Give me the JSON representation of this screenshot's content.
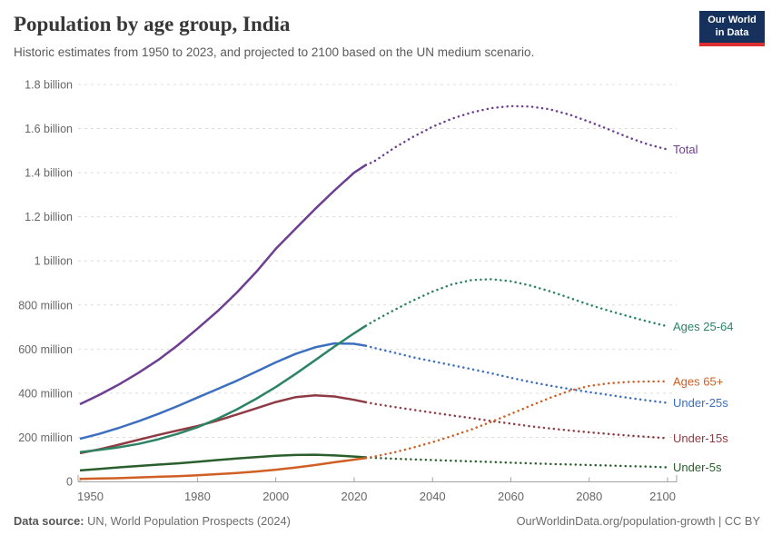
{
  "header": {
    "logo": {
      "line1": "Our World",
      "line2": "in Data",
      "bg": "#16325c",
      "accent": "#dc2f2f"
    }
  },
  "footer": {
    "source_label": "Data source:",
    "source_text": " UN, World Population Prospects (2024)",
    "link_text": "OurWorldinData.org/population-growth | CC BY"
  },
  "chart_data": {
    "type": "line",
    "title": "Population by age group, India",
    "subtitle": "Historic estimates from 1950 to 2023, and projected to 2100 based on the UN medium scenario.",
    "xlabel": "",
    "ylabel": "",
    "units": "millions of people",
    "x_range": [
      1950,
      2100
    ],
    "y_range": [
      0,
      1800
    ],
    "grid": true,
    "legend_position": "right-of-line-ends",
    "projection_start": 2023,
    "x_ticks": [
      {
        "v": 1950,
        "label": "1950"
      },
      {
        "v": 1980,
        "label": "1980"
      },
      {
        "v": 2000,
        "label": "2000"
      },
      {
        "v": 2020,
        "label": "2020"
      },
      {
        "v": 2040,
        "label": "2040"
      },
      {
        "v": 2060,
        "label": "2060"
      },
      {
        "v": 2080,
        "label": "2080"
      },
      {
        "v": 2100,
        "label": "2100"
      }
    ],
    "y_ticks": [
      {
        "v": 0,
        "label": "0"
      },
      {
        "v": 200,
        "label": "200 million"
      },
      {
        "v": 400,
        "label": "400 million"
      },
      {
        "v": 600,
        "label": "600 million"
      },
      {
        "v": 800,
        "label": "800 million"
      },
      {
        "v": 1000,
        "label": "1 billion"
      },
      {
        "v": 1200,
        "label": "1.2 billion"
      },
      {
        "v": 1400,
        "label": "1.4 billion"
      },
      {
        "v": 1600,
        "label": "1.6 billion"
      },
      {
        "v": 1800,
        "label": "1.8 billion"
      }
    ],
    "series": [
      {
        "name": "Under-25s",
        "color": "#3d6fbf",
        "points": [
          [
            1950,
            193
          ],
          [
            1955,
            216
          ],
          [
            1960,
            243
          ],
          [
            1965,
            273
          ],
          [
            1970,
            306
          ],
          [
            1975,
            342
          ],
          [
            1980,
            380
          ],
          [
            1985,
            418
          ],
          [
            1990,
            456
          ],
          [
            1995,
            498
          ],
          [
            2000,
            540
          ],
          [
            2005,
            578
          ],
          [
            2010,
            608
          ],
          [
            2015,
            626
          ],
          [
            2020,
            624
          ],
          [
            2023,
            615
          ],
          [
            2025,
            606
          ],
          [
            2030,
            585
          ],
          [
            2035,
            563
          ],
          [
            2040,
            545
          ],
          [
            2045,
            527
          ],
          [
            2050,
            509
          ],
          [
            2055,
            490
          ],
          [
            2060,
            470
          ],
          [
            2065,
            451
          ],
          [
            2070,
            434
          ],
          [
            2075,
            419
          ],
          [
            2080,
            405
          ],
          [
            2085,
            392
          ],
          [
            2090,
            379
          ],
          [
            2095,
            367
          ],
          [
            2100,
            356
          ]
        ]
      },
      {
        "name": "Under-15s",
        "color": "#8f3b43",
        "points": [
          [
            1950,
            128
          ],
          [
            1955,
            146
          ],
          [
            1960,
            167
          ],
          [
            1965,
            189
          ],
          [
            1970,
            211
          ],
          [
            1975,
            231
          ],
          [
            1980,
            251
          ],
          [
            1985,
            275
          ],
          [
            1990,
            303
          ],
          [
            1995,
            331
          ],
          [
            2000,
            360
          ],
          [
            2005,
            382
          ],
          [
            2010,
            390
          ],
          [
            2015,
            385
          ],
          [
            2020,
            370
          ],
          [
            2023,
            359
          ],
          [
            2025,
            352
          ],
          [
            2030,
            338
          ],
          [
            2035,
            325
          ],
          [
            2040,
            312
          ],
          [
            2045,
            299
          ],
          [
            2050,
            287
          ],
          [
            2055,
            274
          ],
          [
            2060,
            262
          ],
          [
            2065,
            250
          ],
          [
            2070,
            240
          ],
          [
            2075,
            231
          ],
          [
            2080,
            223
          ],
          [
            2085,
            215
          ],
          [
            2090,
            208
          ],
          [
            2095,
            202
          ],
          [
            2100,
            196
          ]
        ]
      },
      {
        "name": "Under-5s",
        "color": "#2a5f2d",
        "points": [
          [
            1950,
            50
          ],
          [
            1955,
            57
          ],
          [
            1960,
            64
          ],
          [
            1965,
            70
          ],
          [
            1970,
            76
          ],
          [
            1975,
            82
          ],
          [
            1980,
            89
          ],
          [
            1985,
            97
          ],
          [
            1990,
            104
          ],
          [
            1995,
            110
          ],
          [
            2000,
            116
          ],
          [
            2005,
            120
          ],
          [
            2010,
            121
          ],
          [
            2015,
            118
          ],
          [
            2020,
            113
          ],
          [
            2023,
            109
          ],
          [
            2025,
            107
          ],
          [
            2030,
            103
          ],
          [
            2035,
            100
          ],
          [
            2040,
            97
          ],
          [
            2045,
            94
          ],
          [
            2050,
            91
          ],
          [
            2055,
            88
          ],
          [
            2060,
            85
          ],
          [
            2065,
            82
          ],
          [
            2070,
            79
          ],
          [
            2075,
            77
          ],
          [
            2080,
            74
          ],
          [
            2085,
            72
          ],
          [
            2090,
            69
          ],
          [
            2095,
            67
          ],
          [
            2100,
            64
          ]
        ]
      },
      {
        "name": "Ages 65+",
        "color": "#cf5f24",
        "points": [
          [
            1950,
            11
          ],
          [
            1955,
            13
          ],
          [
            1960,
            15
          ],
          [
            1965,
            18
          ],
          [
            1970,
            21
          ],
          [
            1975,
            24
          ],
          [
            1980,
            28
          ],
          [
            1985,
            33
          ],
          [
            1990,
            38
          ],
          [
            1995,
            45
          ],
          [
            2000,
            53
          ],
          [
            2005,
            63
          ],
          [
            2010,
            74
          ],
          [
            2015,
            87
          ],
          [
            2020,
            99
          ],
          [
            2023,
            106
          ],
          [
            2025,
            112
          ],
          [
            2030,
            131
          ],
          [
            2035,
            153
          ],
          [
            2040,
            178
          ],
          [
            2045,
            206
          ],
          [
            2050,
            236
          ],
          [
            2055,
            270
          ],
          [
            2060,
            306
          ],
          [
            2065,
            343
          ],
          [
            2070,
            379
          ],
          [
            2075,
            411
          ],
          [
            2080,
            433
          ],
          [
            2085,
            445
          ],
          [
            2090,
            451
          ],
          [
            2095,
            453
          ],
          [
            2100,
            454
          ]
        ]
      },
      {
        "name": "Ages 25-64",
        "color": "#2c8465",
        "points": [
          [
            1950,
            133
          ],
          [
            1955,
            143
          ],
          [
            1960,
            155
          ],
          [
            1965,
            170
          ],
          [
            1970,
            191
          ],
          [
            1975,
            216
          ],
          [
            1980,
            246
          ],
          [
            1985,
            283
          ],
          [
            1990,
            326
          ],
          [
            1995,
            375
          ],
          [
            2000,
            428
          ],
          [
            2005,
            487
          ],
          [
            2010,
            549
          ],
          [
            2015,
            612
          ],
          [
            2020,
            672
          ],
          [
            2023,
            706
          ],
          [
            2025,
            727
          ],
          [
            2030,
            775
          ],
          [
            2035,
            820
          ],
          [
            2040,
            861
          ],
          [
            2045,
            894
          ],
          [
            2050,
            913
          ],
          [
            2055,
            917
          ],
          [
            2060,
            908
          ],
          [
            2065,
            888
          ],
          [
            2070,
            862
          ],
          [
            2075,
            832
          ],
          [
            2080,
            801
          ],
          [
            2085,
            774
          ],
          [
            2090,
            749
          ],
          [
            2095,
            725
          ],
          [
            2100,
            703
          ]
        ]
      },
      {
        "name": "Total",
        "color": "#6d3e91",
        "points": [
          [
            1950,
            350
          ],
          [
            1955,
            393
          ],
          [
            1960,
            440
          ],
          [
            1965,
            493
          ],
          [
            1970,
            551
          ],
          [
            1975,
            618
          ],
          [
            1980,
            693
          ],
          [
            1985,
            770
          ],
          [
            1990,
            855
          ],
          [
            1995,
            950
          ],
          [
            2000,
            1055
          ],
          [
            2005,
            1145
          ],
          [
            2010,
            1235
          ],
          [
            2015,
            1320
          ],
          [
            2020,
            1400
          ],
          [
            2023,
            1435
          ],
          [
            2025,
            1450
          ],
          [
            2030,
            1510
          ],
          [
            2035,
            1562
          ],
          [
            2040,
            1608
          ],
          [
            2045,
            1645
          ],
          [
            2050,
            1673
          ],
          [
            2055,
            1693
          ],
          [
            2060,
            1702
          ],
          [
            2065,
            1700
          ],
          [
            2070,
            1687
          ],
          [
            2075,
            1663
          ],
          [
            2080,
            1631
          ],
          [
            2085,
            1596
          ],
          [
            2090,
            1560
          ],
          [
            2095,
            1528
          ],
          [
            2100,
            1505
          ]
        ]
      }
    ]
  }
}
